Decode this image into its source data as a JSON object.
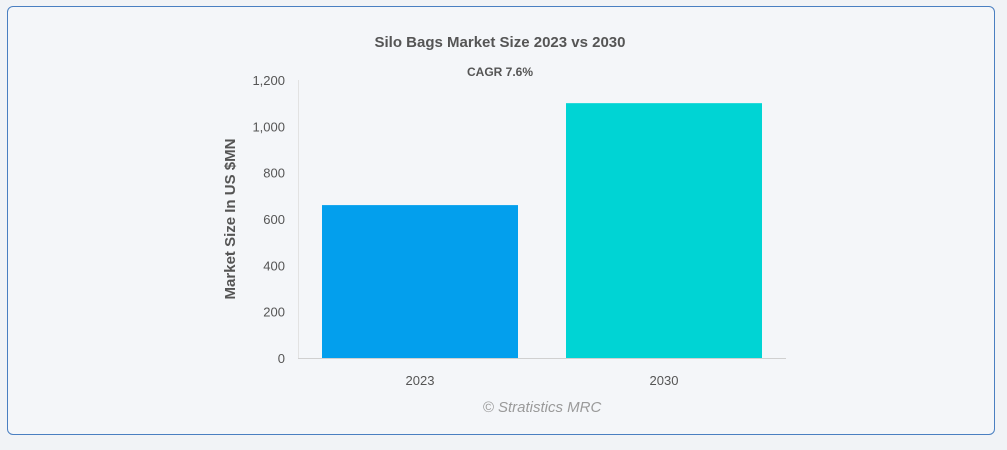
{
  "chart_data": {
    "type": "bar",
    "title": "Silo Bags Market Size 2023 vs 2030",
    "subtitle": "CAGR 7.6%",
    "xlabel": "",
    "ylabel": "Market Size In US $MN",
    "categories": [
      "2023",
      "2030"
    ],
    "values": [
      660,
      1100
    ],
    "ylim": [
      0,
      1200
    ],
    "yticks": [
      0,
      200,
      400,
      600,
      800,
      1000,
      1200
    ],
    "ytick_labels": [
      "0",
      "200",
      "400",
      "600",
      "800",
      "1,000",
      "1,200"
    ],
    "colors": [
      "#039fed",
      "#00d4d4"
    ],
    "grid": false,
    "legend": "none"
  },
  "credit": "© Stratistics MRC"
}
